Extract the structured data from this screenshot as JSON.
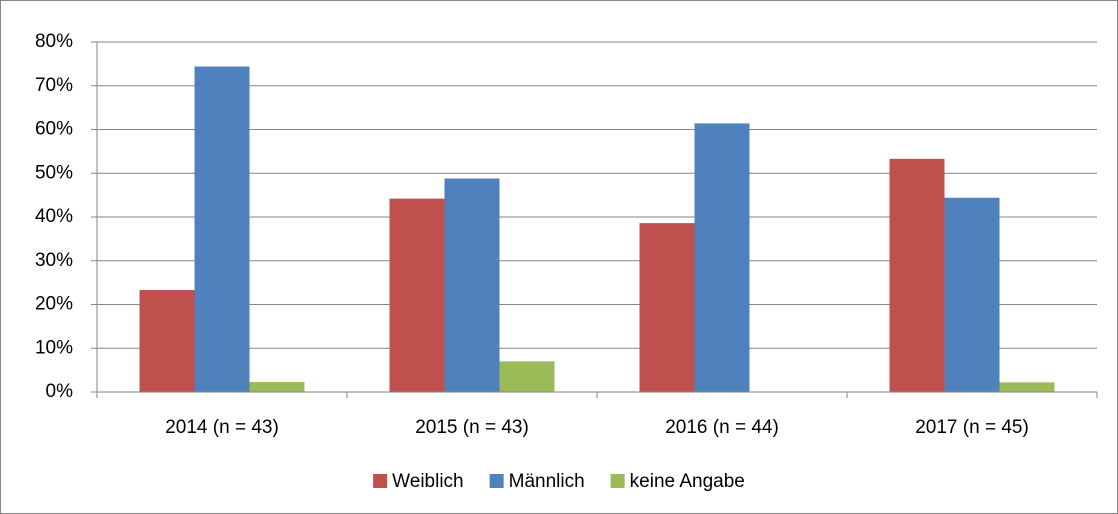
{
  "chart_data": {
    "type": "bar",
    "categories": [
      "2014 (n = 43)",
      "2015 (n = 43)",
      "2016 (n = 44)",
      "2017 (n = 45)"
    ],
    "series": [
      {
        "name": "Weiblich",
        "color": "#c0504d",
        "values": [
          23.3,
          44.2,
          38.6,
          53.3
        ]
      },
      {
        "name": "Männlich",
        "color": "#4f81bd",
        "values": [
          74.4,
          48.8,
          61.4,
          44.4
        ]
      },
      {
        "name": "keine Angabe",
        "color": "#9bbb59",
        "values": [
          2.3,
          7.0,
          0,
          2.2
        ]
      }
    ],
    "ylim": [
      0,
      80
    ],
    "yticks": [
      {
        "value": 0,
        "label": "0%"
      },
      {
        "value": 10,
        "label": "10%"
      },
      {
        "value": 20,
        "label": "20%"
      },
      {
        "value": 30,
        "label": "30%"
      },
      {
        "value": 40,
        "label": "40%"
      },
      {
        "value": 50,
        "label": "50%"
      },
      {
        "value": 60,
        "label": "60%"
      },
      {
        "value": 70,
        "label": "70%"
      },
      {
        "value": 80,
        "label": "80%"
      }
    ],
    "grid": true,
    "legend": "bottom"
  }
}
